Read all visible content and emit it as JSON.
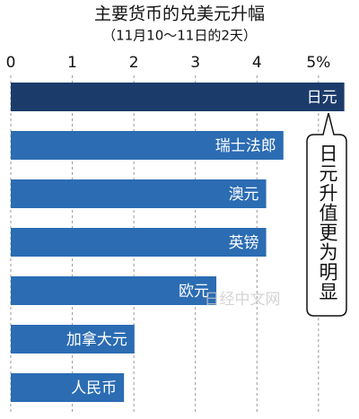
{
  "chart_data": {
    "type": "bar",
    "orientation": "horizontal",
    "title": "主要货币的兑美元升幅",
    "subtitle": "（11月10〜11日的2天）",
    "categories": [
      "日元",
      "瑞士法郎",
      "澳元",
      "英镑",
      "欧元",
      "加拿大元",
      "人民币"
    ],
    "values": [
      5.42,
      4.43,
      4.15,
      4.15,
      3.34,
      2.01,
      1.84
    ],
    "colors": [
      "#1b3c6b",
      "#2b6cb3",
      "#2b6cb3",
      "#2b6cb3",
      "#2b6cb3",
      "#2b6cb3",
      "#2b6cb3"
    ],
    "xlim": [
      0,
      5.6
    ],
    "xticks": [
      0,
      1,
      2,
      3,
      4,
      {
        "value": 5,
        "label": "5%"
      }
    ],
    "grid": true,
    "annotation": "日元升值更为明显",
    "watermark": "日经中文网"
  }
}
